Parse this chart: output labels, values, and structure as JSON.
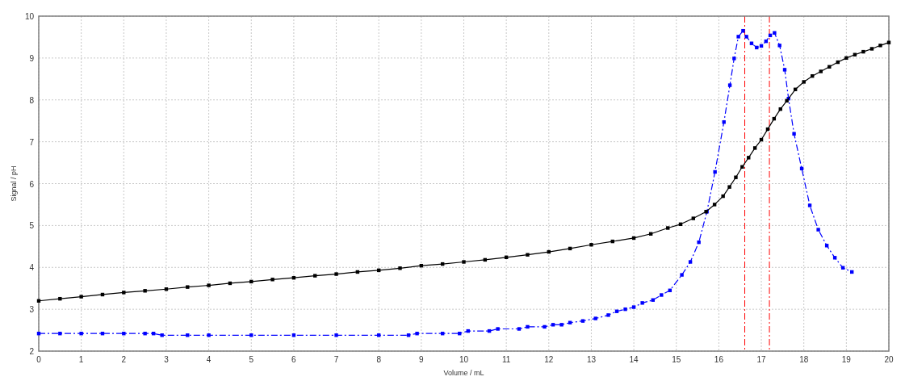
{
  "chart_data": {
    "type": "line",
    "xlabel": "Volume / mL",
    "ylabel": "Signal / pH",
    "xlim": [
      0,
      20
    ],
    "xticks": [
      0,
      1,
      2,
      3,
      4,
      5,
      6,
      7,
      8,
      9,
      10,
      11,
      12,
      13,
      14,
      15,
      16,
      17,
      18,
      19,
      20
    ],
    "ylim": [
      2,
      10
    ],
    "yticks": [
      2,
      3,
      4,
      5,
      6,
      7,
      8,
      9,
      10
    ],
    "grid": true,
    "marker": "square",
    "series": [
      {
        "color": "#000000",
        "line_style": "solid",
        "x": [
          0,
          0.5,
          1,
          1.5,
          2,
          2.5,
          3,
          3.5,
          4,
          4.5,
          5,
          5.5,
          6,
          6.5,
          7,
          7.5,
          8,
          8.5,
          9,
          9.5,
          10,
          10.5,
          11,
          11.5,
          12,
          12.5,
          13,
          13.5,
          14,
          14.4,
          14.8,
          15.1,
          15.4,
          15.7,
          15.9,
          16.1,
          16.25,
          16.4,
          16.55,
          16.7,
          16.85,
          17,
          17.15,
          17.3,
          17.45,
          17.6,
          17.8,
          18,
          18.2,
          18.4,
          18.6,
          18.8,
          19,
          19.2,
          19.4,
          19.6,
          19.8,
          20
        ],
        "values": [
          3.2,
          3.25,
          3.3,
          3.35,
          3.4,
          3.44,
          3.48,
          3.53,
          3.57,
          3.62,
          3.66,
          3.71,
          3.75,
          3.8,
          3.84,
          3.89,
          3.93,
          3.98,
          4.04,
          4.08,
          4.13,
          4.18,
          4.24,
          4.3,
          4.37,
          4.45,
          4.54,
          4.62,
          4.7,
          4.8,
          4.94,
          5.03,
          5.17,
          5.33,
          5.5,
          5.7,
          5.92,
          6.15,
          6.4,
          6.62,
          6.85,
          7.05,
          7.3,
          7.55,
          7.78,
          7.98,
          8.25,
          8.43,
          8.57,
          8.68,
          8.79,
          8.9,
          9.0,
          9.08,
          9.15,
          9.22,
          9.3,
          9.37
        ]
      },
      {
        "color": "#0000ff",
        "line_style": "dashed",
        "x": [
          0,
          0.5,
          1,
          1.5,
          2,
          2.5,
          2.7,
          2.9,
          3.5,
          4,
          5,
          6,
          7,
          8,
          8.7,
          8.9,
          9.5,
          9.9,
          10.1,
          10.6,
          10.8,
          11.3,
          11.5,
          11.9,
          12.1,
          12.3,
          12.5,
          12.8,
          13.1,
          13.4,
          13.6,
          13.8,
          14,
          14.2,
          14.45,
          14.65,
          14.85,
          15.13,
          15.33,
          15.53,
          15.72,
          15.91,
          16.12,
          16.26,
          16.36,
          16.46,
          16.57,
          16.65,
          16.77,
          16.89,
          17.0,
          17.11,
          17.21,
          17.31,
          17.43,
          17.55,
          17.64,
          17.77,
          17.95,
          18.14,
          18.34,
          18.54,
          18.73,
          18.92,
          19.13
        ],
        "values": [
          2.42,
          2.42,
          2.42,
          2.42,
          2.42,
          2.42,
          2.42,
          2.38,
          2.38,
          2.38,
          2.38,
          2.38,
          2.38,
          2.38,
          2.38,
          2.42,
          2.42,
          2.42,
          2.48,
          2.48,
          2.53,
          2.53,
          2.58,
          2.58,
          2.63,
          2.63,
          2.68,
          2.72,
          2.78,
          2.86,
          2.95,
          3.0,
          3.05,
          3.15,
          3.22,
          3.34,
          3.45,
          3.82,
          4.13,
          4.6,
          5.33,
          6.28,
          7.47,
          8.35,
          8.99,
          9.51,
          9.65,
          9.51,
          9.35,
          9.25,
          9.29,
          9.4,
          9.54,
          9.6,
          9.3,
          8.72,
          8.03,
          7.19,
          6.36,
          5.48,
          4.9,
          4.52,
          4.23,
          3.99,
          3.89
        ]
      }
    ],
    "ref_lines": [
      {
        "axis": "x",
        "value": 16.61,
        "color": "#ff0000",
        "line_style": "dashed"
      },
      {
        "axis": "x",
        "value": 17.19,
        "color": "#ff0000",
        "line_style": "dashed"
      }
    ]
  }
}
